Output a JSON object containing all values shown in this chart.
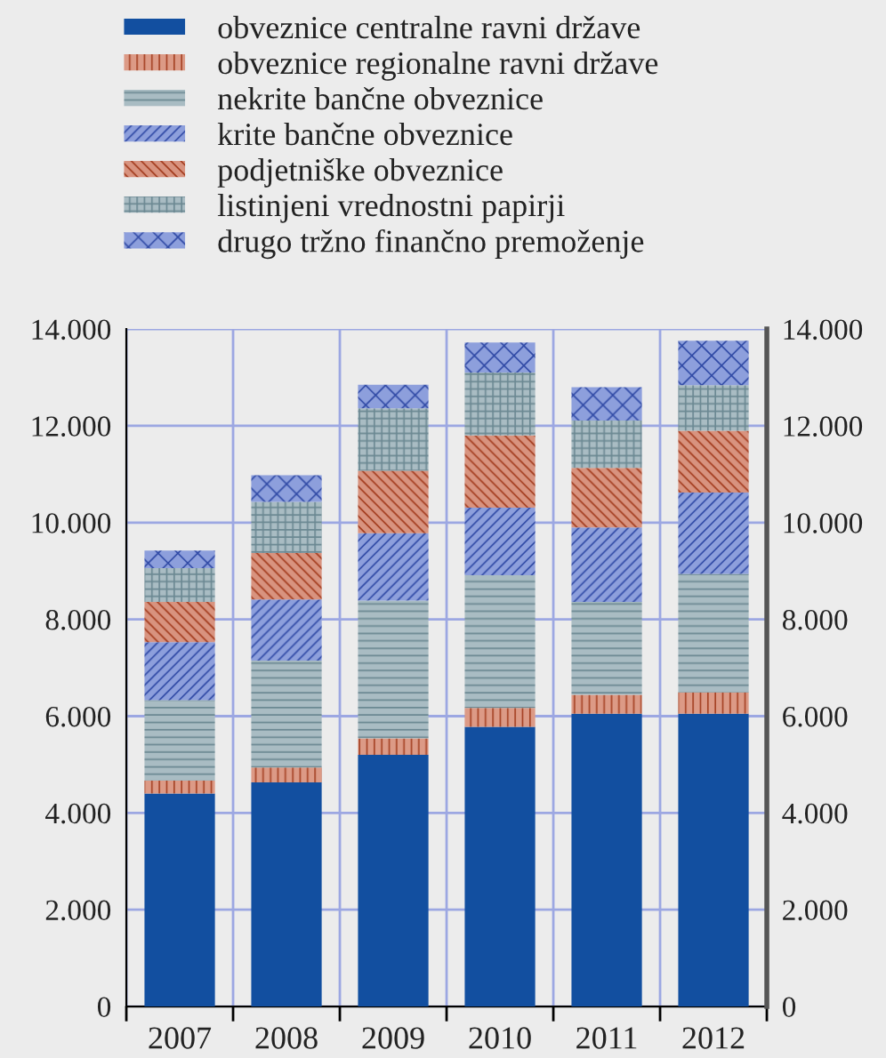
{
  "chart_data": {
    "type": "bar",
    "stacked": true,
    "categories": [
      "2007",
      "2008",
      "2009",
      "2010",
      "2011",
      "2012"
    ],
    "series": [
      {
        "name": "obveznice centralne ravni države",
        "color": "#124fa0",
        "values": [
          4400,
          4630,
          5200,
          5780,
          6050,
          6050
        ]
      },
      {
        "name": "obveznice regionalne ravni države",
        "color": "#dc9a86",
        "values": [
          270,
          310,
          340,
          390,
          390,
          440
        ]
      },
      {
        "name": "nekrite bančne obveznice",
        "color": "#a9bcc3",
        "values": [
          1660,
          2210,
          2850,
          2740,
          1920,
          2450
        ]
      },
      {
        "name": "krite bančne obveznice",
        "color": "#8d9fdc",
        "values": [
          1200,
          1260,
          1390,
          1400,
          1540,
          1680
        ]
      },
      {
        "name": "podjetniške obveznice",
        "color": "#d8937f",
        "values": [
          830,
          960,
          1290,
          1490,
          1230,
          1280
        ]
      },
      {
        "name": "listinjeni vrednostni papirji",
        "color": "#a9bcc3",
        "values": [
          700,
          1060,
          1290,
          1300,
          980,
          940
        ]
      },
      {
        "name": "drugo tržno finančno premoženje",
        "color": "#8d9fdc",
        "values": [
          360,
          550,
          490,
          620,
          690,
          920
        ]
      }
    ],
    "ylim": [
      0,
      14000
    ],
    "yticks": [
      0,
      {
        "value": 2000,
        "label": "2.000"
      },
      {
        "value": 4000,
        "label": "4.000"
      },
      {
        "value": 6000,
        "label": "6.000"
      },
      {
        "value": 8000,
        "label": "8.000"
      },
      {
        "value": 10000,
        "label": "10.000"
      },
      {
        "value": 12000,
        "label": "12.000"
      },
      {
        "value": 14000,
        "label": "14.000"
      }
    ],
    "y2lim": [
      0,
      14000
    ],
    "y2ticks": [
      0,
      {
        "value": 2000,
        "label": "2.000"
      },
      {
        "value": 4000,
        "label": "4.000"
      },
      {
        "value": 6000,
        "label": "6.000"
      },
      {
        "value": 8000,
        "label": "8.000"
      },
      {
        "value": 10000,
        "label": "10.000"
      },
      {
        "value": 12000,
        "label": "12.000"
      },
      {
        "value": 14000,
        "label": "14.000"
      }
    ],
    "grid": true,
    "legend": "top"
  }
}
